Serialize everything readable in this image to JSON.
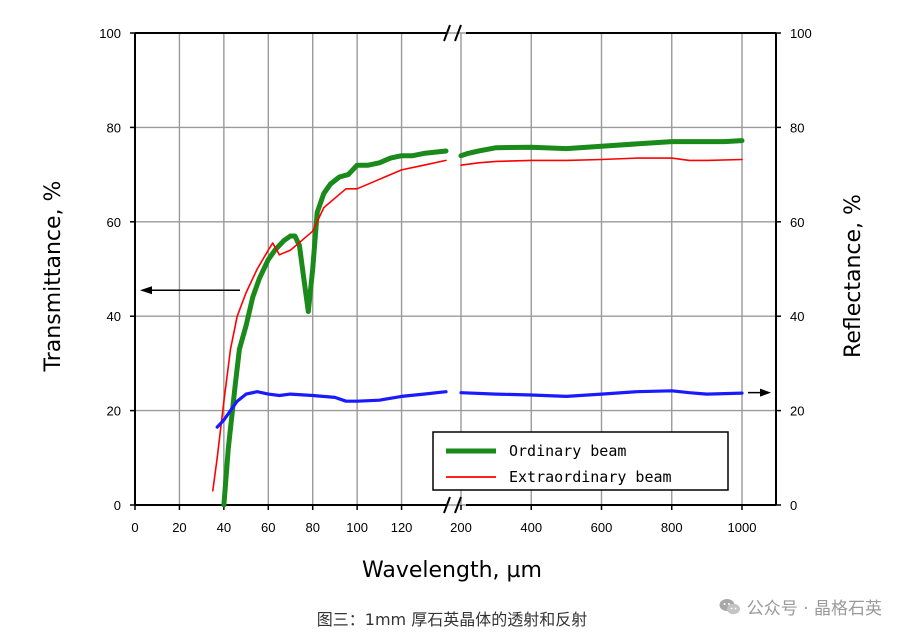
{
  "caption": "图三：1mm 厚石英晶体的透射和反射",
  "watermark": {
    "text": "公众号 · 晶格石英",
    "icon": "wechat-icon"
  },
  "chart_data": {
    "type": "line",
    "title": "",
    "xlabel": "Wavelength, µm",
    "ylabel_left": "Transmittance, %",
    "ylabel_right": "Reflectance, %",
    "ylim": [
      0,
      100
    ],
    "yticks": [
      "0",
      "20",
      "40",
      "60",
      "80",
      "100"
    ],
    "x_segments": [
      {
        "range": [
          0,
          140
        ],
        "ticks": [
          "0",
          "20",
          "40",
          "60",
          "80",
          "100",
          "120"
        ],
        "tick_values": [
          0,
          20,
          40,
          60,
          80,
          100,
          120
        ]
      },
      {
        "range": [
          200,
          1060
        ],
        "ticks": [
          "200",
          "400",
          "600",
          "800",
          "1000"
        ],
        "tick_values": [
          200,
          400,
          600,
          800,
          1000
        ]
      }
    ],
    "axis_break": "//",
    "grid": true,
    "legend_position": "bottom-right",
    "series": [
      {
        "name": "Ordinary beam",
        "color": "#1a8a1a",
        "axis": "left",
        "x": [
          40,
          42,
          45,
          47,
          50,
          53,
          56,
          60,
          63,
          67,
          70,
          72,
          74,
          76,
          78,
          80,
          82,
          85,
          88,
          92,
          96,
          100,
          105,
          110,
          115,
          120,
          125,
          130,
          140,
          200,
          220,
          250,
          300,
          400,
          500,
          600,
          700,
          800,
          850,
          900,
          950,
          1000
        ],
        "y": [
          0,
          12,
          25,
          33,
          38,
          44,
          48,
          52,
          54,
          56,
          57,
          57,
          55,
          48,
          41,
          50,
          62,
          66,
          68,
          69.5,
          70,
          72,
          72,
          72.5,
          73.5,
          74,
          74,
          74.5,
          75,
          74,
          74.5,
          75,
          75.7,
          75.8,
          75.5,
          76,
          76.5,
          77,
          77,
          77,
          77,
          77.2
        ]
      },
      {
        "name": "Extraordinary beam",
        "color": "#ff0000",
        "axis": "left",
        "x": [
          35,
          37,
          40,
          43,
          46,
          50,
          55,
          60,
          62,
          65,
          70,
          75,
          80,
          85,
          90,
          95,
          100,
          110,
          120,
          130,
          140,
          200,
          250,
          300,
          400,
          500,
          600,
          700,
          800,
          850,
          900,
          1000
        ],
        "y": [
          3,
          10,
          22,
          33,
          40,
          45,
          50,
          54,
          55.5,
          53,
          54,
          56,
          58,
          63,
          65,
          67,
          67,
          69,
          71,
          72,
          73,
          72,
          72.5,
          72.8,
          73,
          73,
          73.2,
          73.5,
          73.5,
          73,
          73,
          73.2
        ]
      },
      {
        "name": "",
        "color": "#1a1aff",
        "axis": "right",
        "x": [
          37,
          40,
          43,
          46,
          50,
          55,
          60,
          65,
          70,
          80,
          90,
          95,
          100,
          110,
          120,
          130,
          140,
          200,
          300,
          400,
          500,
          600,
          700,
          800,
          850,
          900,
          1000
        ],
        "y": [
          16.5,
          18,
          20,
          22,
          23.5,
          24,
          23.5,
          23.2,
          23.5,
          23.2,
          22.8,
          22,
          22,
          22.2,
          23,
          23.5,
          24,
          23.8,
          23.5,
          23.3,
          23,
          23.5,
          24,
          24.2,
          23.8,
          23.5,
          23.7
        ]
      }
    ],
    "annotations": [
      {
        "type": "arrow",
        "direction": "left",
        "axis": "left",
        "y": 45.5,
        "meaning": "transmittance axis"
      },
      {
        "type": "arrow",
        "direction": "right",
        "axis": "right",
        "y": 23.8,
        "meaning": "reflectance axis"
      }
    ]
  }
}
